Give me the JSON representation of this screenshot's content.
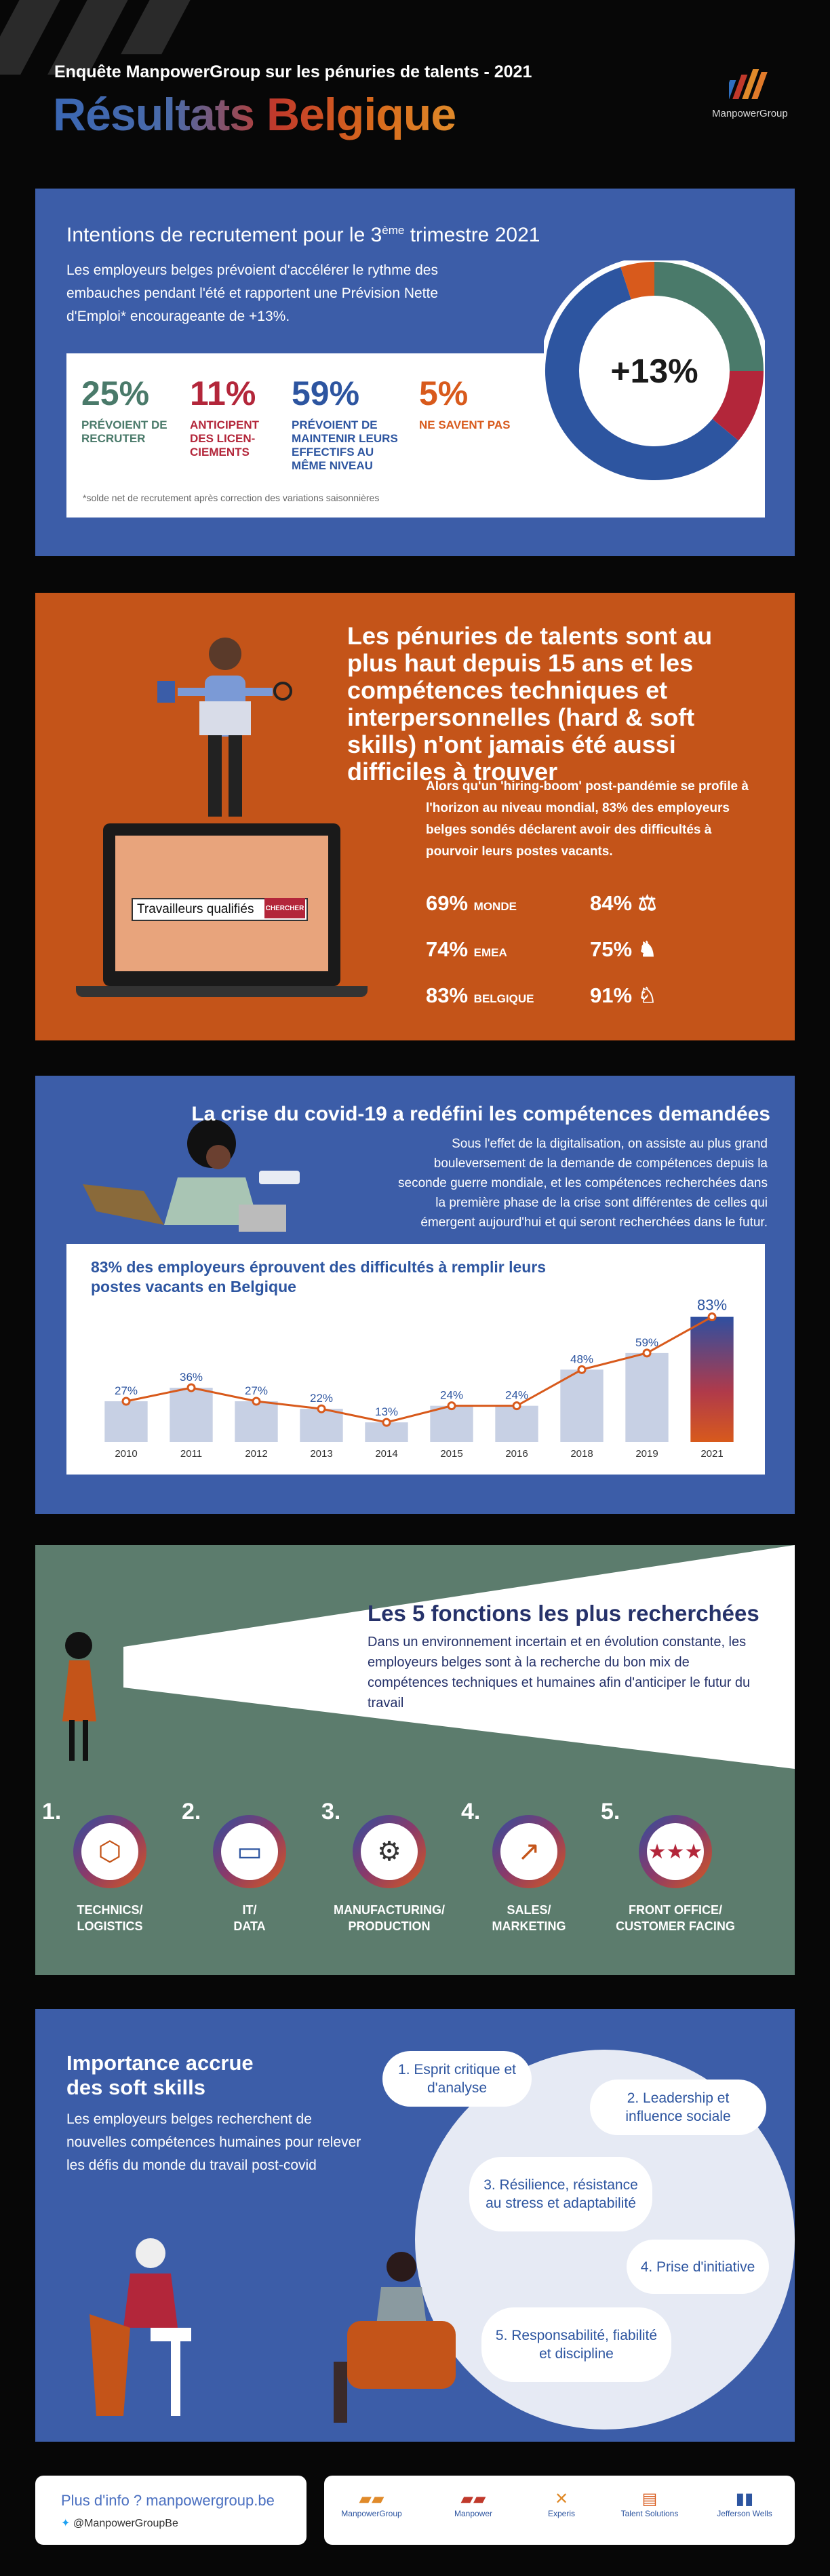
{
  "header": {
    "subtitle": "Enquête ManpowerGroup sur les pénuries de talents - 2021",
    "title": "Résultats Belgique",
    "logo_text": "ManpowerGroup"
  },
  "colors": {
    "blue": "#3c5da8",
    "orange": "#c45419",
    "green": "#5c7c6d",
    "teal": "#4a7a6a",
    "red": "#b3263a",
    "accent_orange": "#d85a1c"
  },
  "section1": {
    "title_main": "Intentions de recrutement pour le 3",
    "title_sup": "ème",
    "title_end": " trimestre 2021",
    "text": "Les employeurs belges prévoient d'accélérer le rythme des embauches pendant l'été et rapportent une Prévision Nette d'Emploi* encourageante de +13%.",
    "stats": [
      {
        "pct": "25%",
        "label": "PRÉVOIENT DE RECRUTER",
        "color": "#4a7a6a",
        "value": 25
      },
      {
        "pct": "11%",
        "label": "ANTICIPENT DES LICEN-CIEMENTS",
        "color": "#b3263a",
        "value": 11
      },
      {
        "pct": "59%",
        "label": "PRÉVOIENT DE MAINTENIR LEURS EFFECTIFS AU MÊME NIVEAU",
        "color": "#2d55a0",
        "value": 59
      },
      {
        "pct": "5%",
        "label": "NE SAVENT PAS",
        "color": "#d85a1c",
        "value": 5
      }
    ],
    "note": "*solde net de recrutement après correction des variations saisonnières",
    "center": "+13%"
  },
  "section2": {
    "title": "Les pénuries de talents sont au plus haut depuis 15 ans et les compétences techniques et interpersonnelles (hard & soft skills) n'ont jamais été aussi difficiles à trouver",
    "text": "Alors qu'un 'hiring-boom' post-pandémie se profile à l'horizon au niveau mondial, 83% des employeurs belges sondés déclarent avoir des difficultés à pourvoir leurs postes vacants.",
    "screen_label": "Travailleurs qualifiés",
    "search_btn": "CHERCHER",
    "rows": [
      {
        "pct": "69%",
        "region": "MONDE",
        "pct2": "84%",
        "icon": "scale-icon"
      },
      {
        "pct": "74%",
        "region": "EMEA",
        "pct2": "75%",
        "icon": "lion-icon"
      },
      {
        "pct": "83%",
        "region": "BELGIQUE",
        "pct2": "91%",
        "icon": "rooster-icon"
      }
    ]
  },
  "section3": {
    "title": "La crise du covid-19 a redéfini les compétences demandées",
    "text": "Sous l'effet de la digitalisation, on assiste au plus grand bouleversement de la demande de compétences depuis la seconde guerre mondiale, et les compétences recherchées dans la première phase de la crise sont différentes de celles qui émergent aujourd'hui et qui seront recherchées dans le futur."
  },
  "chart_data": {
    "type": "bar",
    "title": "83% des employeurs éprouvent des difficultés à remplir leurs postes vacants en Belgique",
    "categories": [
      "2010",
      "2011",
      "2012",
      "2013",
      "2014",
      "2015",
      "2016",
      "2018",
      "2019",
      "2021"
    ],
    "values": [
      27,
      36,
      27,
      22,
      13,
      24,
      24,
      48,
      59,
      83
    ],
    "labels": [
      "27%",
      "36%",
      "27%",
      "22%",
      "13%",
      "24%",
      "24%",
      "48%",
      "59%",
      "83%"
    ],
    "ylim": [
      0,
      90
    ],
    "line_overlay": true,
    "grid": false
  },
  "section4": {
    "title": "Les 5 fonctions les plus recherchées",
    "text": "Dans un environnement incertain et en évolution constante, les employeurs belges sont à la recherche du bon mix de compétences techniques et humaines afin d'anticiper le futur du travail",
    "functions": [
      {
        "num": "1.",
        "label1": "TECHNICS/",
        "label2": "LOGISTICS",
        "icon": "box-icon"
      },
      {
        "num": "2.",
        "label1": "IT/",
        "label2": "DATA",
        "icon": "laptop-icon"
      },
      {
        "num": "3.",
        "label1": "MANUFACTURING/",
        "label2": "PRODUCTION",
        "icon": "robot-arm-icon"
      },
      {
        "num": "4.",
        "label1": "SALES/",
        "label2": "MARKETING",
        "icon": "growth-chart-icon"
      },
      {
        "num": "5.",
        "label1": "FRONT OFFICE/",
        "label2": "CUSTOMER FACING",
        "icon": "star-rating-icon"
      }
    ]
  },
  "section5": {
    "title": "Importance accrue des soft skills",
    "text": "Les employeurs belges recherchent de nouvelles compétences humaines pour relever les défis du monde du travail post-covid",
    "skills": [
      "1. Esprit critique et d'analyse",
      "2. Leadership et influence sociale",
      "3. Résilience, résistance au stress et adaptabilité",
      "4. Prise d'initiative",
      "5. Responsabilité, fiabilité et discipline"
    ]
  },
  "footer": {
    "link": "Plus d'info ? manpowergroup.be",
    "twitter": "@ManpowerGroupBe",
    "brands": [
      "ManpowerGroup",
      "Manpower",
      "Experis",
      "Talent Solutions",
      "Jefferson Wells"
    ]
  }
}
